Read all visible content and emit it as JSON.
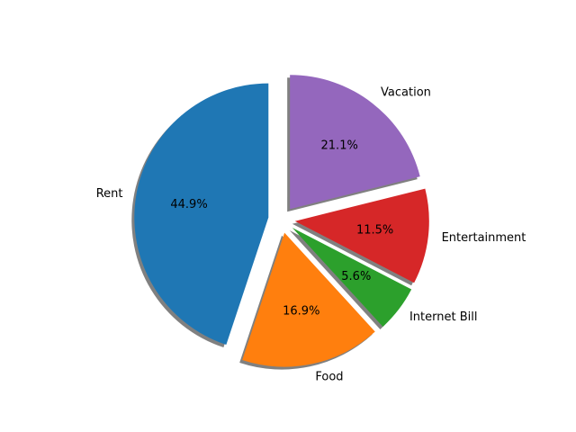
{
  "chart_data": {
    "type": "pie",
    "title": "",
    "categories": [
      "Rent",
      "Food",
      "Internet Bill",
      "Entertainment",
      "Vacation"
    ],
    "values": [
      44.9,
      16.9,
      5.6,
      11.5,
      21.1
    ],
    "percent_labels": [
      "44.9%",
      "16.9%",
      "5.6%",
      "11.5%",
      "21.1%"
    ],
    "colors": [
      "#1f77b4",
      "#ff7f0e",
      "#2ca02c",
      "#d62728",
      "#9467bd"
    ],
    "explode": [
      0.1,
      0.1,
      0.1,
      0.1,
      0.1
    ],
    "start_angle_deg": 90,
    "direction": "counterclockwise",
    "shadow": true,
    "legend": "none"
  }
}
